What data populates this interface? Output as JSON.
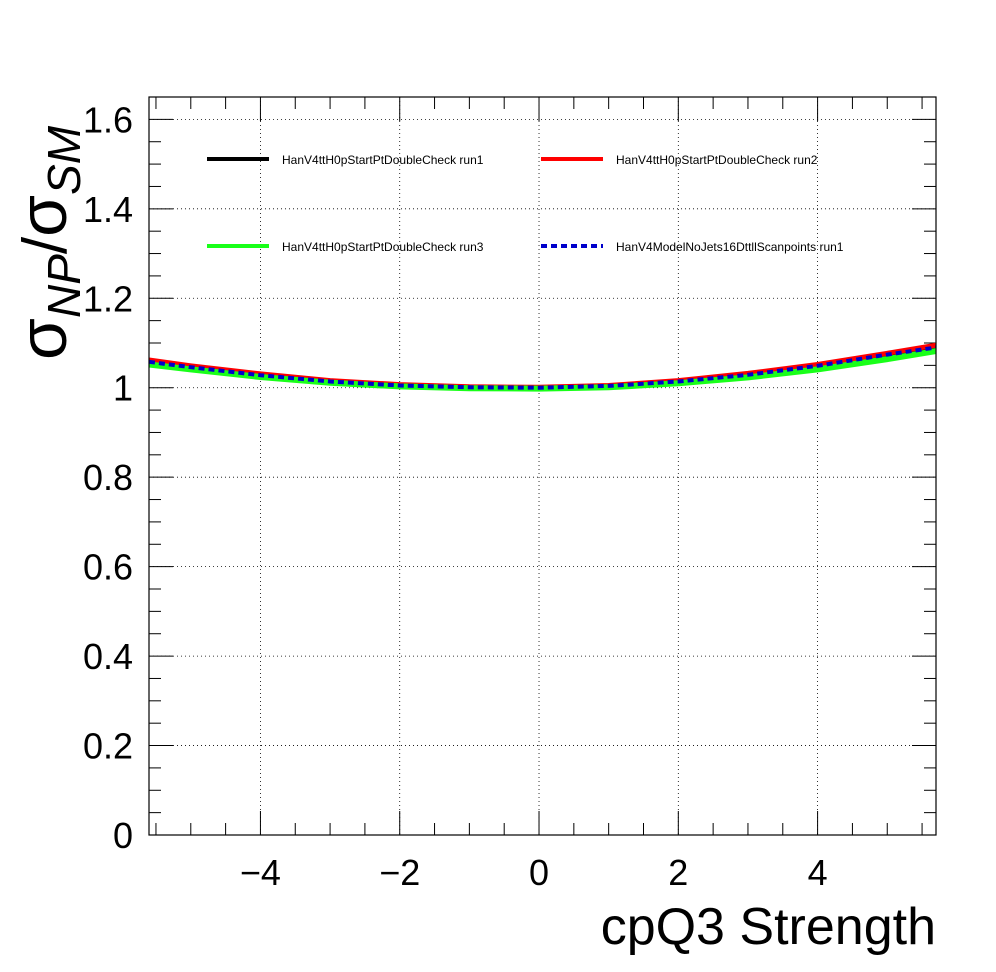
{
  "chart_data": {
    "type": "line",
    "xlabel": "cpQ3 Strength",
    "ylabel": {
      "main": "σ",
      "sub1": "NP",
      "slash": "/",
      "main2": "σ",
      "sub2": "SM"
    },
    "xlim": [
      -5.6,
      5.7
    ],
    "ylim": [
      0,
      1.65
    ],
    "xticks": [
      -4,
      -2,
      0,
      2,
      4
    ],
    "xtick_labels": [
      "−4",
      "−2",
      "0",
      "2",
      "4"
    ],
    "yticks": [
      0,
      0.2,
      0.4,
      0.6,
      0.8,
      1,
      1.2,
      1.4,
      1.6
    ],
    "ytick_labels": [
      "0",
      "0.2",
      "0.4",
      "0.6",
      "0.8",
      "1",
      "1.2",
      "1.4",
      "1.6"
    ],
    "grid": true,
    "legend_position": "top",
    "series": [
      {
        "name": "HanV4ttH0pStartPtDoubleCheck run1",
        "color": "#000000",
        "style": "solid",
        "x": [
          -5.6,
          -5,
          -4,
          -3,
          -2,
          -1,
          0,
          1,
          2,
          3,
          4,
          5,
          5.7
        ],
        "values": [
          1.058,
          1.046,
          1.028,
          1.014,
          1.005,
          1.001,
          1.0,
          1.004,
          1.014,
          1.029,
          1.049,
          1.074,
          1.092
        ]
      },
      {
        "name": "HanV4ttH0pStartPtDoubleCheck run2",
        "color": "#ff0000",
        "style": "solid",
        "x": [
          -5.6,
          -5,
          -4,
          -3,
          -2,
          -1,
          0,
          1,
          2,
          3,
          4,
          5,
          5.7
        ],
        "values": [
          1.062,
          1.049,
          1.031,
          1.016,
          1.007,
          1.002,
          1.001,
          1.005,
          1.016,
          1.032,
          1.052,
          1.077,
          1.095
        ]
      },
      {
        "name": "HanV4ttH0pStartPtDoubleCheck run3",
        "color": "#19ff19",
        "style": "solid",
        "x": [
          -5.6,
          -5,
          -4,
          -3,
          -2,
          -1,
          0,
          1,
          2,
          3,
          4,
          5,
          5.7
        ],
        "values": [
          1.052,
          1.041,
          1.024,
          1.011,
          1.003,
          0.999,
          0.998,
          1.001,
          1.01,
          1.023,
          1.041,
          1.064,
          1.082
        ]
      },
      {
        "name": "HanV4ModelNoJets16DttllScanpoints run1",
        "color": "#0000cc",
        "style": "dashed",
        "x": [
          -5.6,
          -5,
          -4,
          -3,
          -2,
          -1,
          0,
          1,
          2,
          3,
          4,
          5,
          5.7
        ],
        "values": [
          1.058,
          1.046,
          1.028,
          1.014,
          1.005,
          1.001,
          1.0,
          1.004,
          1.014,
          1.029,
          1.049,
          1.074,
          1.09
        ]
      }
    ]
  }
}
